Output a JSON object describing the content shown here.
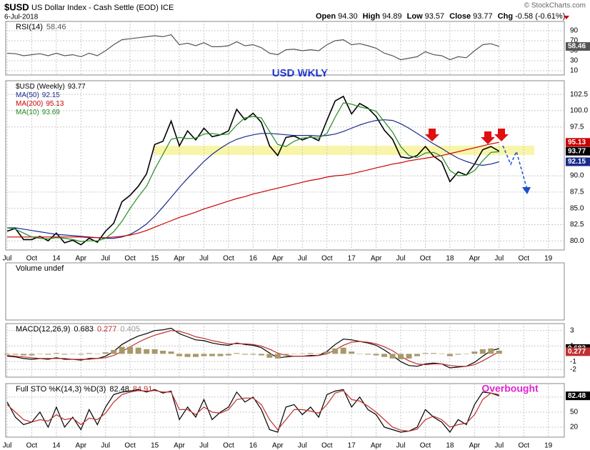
{
  "header": {
    "symbol": "$USD",
    "name": "US Dollar Index - Cash Settle (EOD) ICE",
    "date": "6-Jul-2018",
    "quote": [
      {
        "label": "Open",
        "value": "94.30"
      },
      {
        "label": "High",
        "value": "94.89"
      },
      {
        "label": "Low",
        "value": "93.57"
      },
      {
        "label": "Close",
        "value": "93.77"
      },
      {
        "label": "Chg",
        "value": "-0.58 (-0.61%)"
      }
    ],
    "credit": "© StockCharts.com",
    "volume_panel": "Volume undef"
  },
  "chart_data": [
    {
      "type": "line",
      "annotation": "USD WKLY",
      "categories": [
        "Jul",
        null,
        null,
        "Oct",
        null,
        null,
        "14",
        null,
        null,
        "Apr",
        null,
        null,
        "Jul",
        null,
        null,
        "Oct",
        null,
        null,
        "15",
        null,
        null,
        "Apr",
        null,
        null,
        "Jul",
        null,
        null,
        "Oct",
        null,
        null,
        "16",
        null,
        null,
        "Apr",
        null,
        null,
        "Jul",
        null,
        null,
        "Oct",
        null,
        null,
        "17",
        null,
        null,
        "Apr",
        null,
        null,
        "Jul",
        null,
        null,
        "Oct",
        null,
        null,
        "18",
        null,
        null,
        "Apr",
        null,
        null,
        "Jul",
        null,
        null,
        "Oct",
        null,
        null,
        "19"
      ],
      "ylim": [
        78.6,
        104.6
      ],
      "yticks": [
        {
          "value": 80,
          "label": "80.0"
        },
        82.5,
        {
          "value": 85,
          "label": "85.0"
        },
        87.5,
        {
          "value": 90,
          "label": "90.0"
        },
        97.5,
        {
          "value": 100,
          "label": "100.0"
        },
        102.5
      ],
      "series": [
        {
          "name": "$USD (Weekly)",
          "color": "#000000",
          "value_tag": true,
          "values": [
            81.5,
            81.9,
            80.2,
            80.2,
            80.7,
            80.0,
            81.2,
            79.7,
            80.1,
            79.4,
            80.4,
            79.8,
            81.5,
            82.7,
            86.0,
            87.0,
            88.4,
            90.3,
            94.8,
            95.3,
            98.4,
            94.6,
            96.9,
            95.5,
            97.3,
            96.0,
            96.3,
            96.9,
            100.2,
            98.6,
            99.6,
            98.2,
            94.6,
            93.1,
            95.9,
            96.1,
            95.5,
            96.0,
            95.4,
            98.5,
            101.5,
            102.2,
            99.5,
            101.1,
            100.4,
            99.1,
            97.0,
            95.6,
            92.9,
            92.7,
            93.1,
            94.5,
            93.0,
            92.1,
            89.1,
            90.6,
            90.1,
            91.8,
            94.0,
            94.5,
            93.77,
            null,
            null,
            null,
            null,
            null,
            null
          ]
        },
        {
          "name": "MA(50)",
          "color": "#1a2a8a",
          "value_tag": true,
          "values": [
            82.0,
            82.0,
            81.8,
            81.6,
            81.4,
            81.2,
            81.0,
            80.9,
            80.8,
            80.7,
            80.6,
            80.5,
            80.4,
            80.4,
            80.6,
            81.0,
            81.7,
            82.6,
            83.8,
            85.2,
            86.7,
            88.2,
            89.6,
            90.9,
            92.2,
            93.3,
            94.2,
            95.0,
            95.6,
            96.0,
            96.3,
            96.5,
            96.5,
            96.4,
            96.3,
            96.2,
            96.2,
            96.2,
            96.1,
            96.2,
            96.4,
            96.8,
            97.3,
            97.8,
            98.2,
            98.5,
            98.6,
            98.5,
            98.0,
            97.3,
            96.5,
            95.7,
            94.9,
            94.2,
            93.4,
            92.7,
            92.2,
            91.8,
            91.6,
            91.8,
            92.15,
            null,
            null,
            null,
            null,
            null,
            null
          ]
        },
        {
          "name": "MA(200)",
          "color": "#cc0000",
          "value_tag": true,
          "values": [
            80.6,
            80.6,
            80.6,
            80.6,
            80.6,
            80.6,
            80.6,
            80.6,
            80.6,
            80.6,
            80.5,
            80.5,
            80.5,
            80.6,
            80.7,
            80.9,
            81.2,
            81.6,
            82.1,
            82.6,
            83.1,
            83.6,
            84.0,
            84.4,
            84.9,
            85.3,
            85.7,
            86.1,
            86.5,
            86.8,
            87.2,
            87.5,
            87.8,
            88.1,
            88.4,
            88.7,
            89.0,
            89.3,
            89.5,
            89.8,
            90.0,
            90.1,
            90.3,
            90.6,
            90.9,
            91.2,
            91.5,
            91.8,
            92.0,
            92.3,
            92.5,
            92.7,
            92.9,
            93.1,
            93.4,
            93.7,
            94.0,
            94.3,
            94.6,
            94.9,
            95.13,
            null,
            null,
            null,
            null,
            null,
            null
          ]
        },
        {
          "name": "MA(10)",
          "color": "#228b22",
          "values": [
            82.0,
            81.8,
            81.2,
            80.6,
            80.4,
            80.3,
            80.5,
            80.4,
            80.2,
            79.9,
            80.0,
            80.0,
            80.4,
            81.4,
            83.0,
            85.0,
            86.8,
            88.4,
            91.0,
            93.3,
            95.6,
            95.9,
            95.7,
            95.8,
            96.4,
            96.5,
            96.3,
            96.4,
            97.8,
            98.9,
            99.1,
            98.9,
            96.8,
            94.8,
            94.5,
            95.3,
            95.8,
            95.9,
            95.8,
            96.5,
            99.0,
            101.2,
            101.0,
            100.6,
            100.3,
            99.9,
            98.3,
            96.7,
            94.5,
            93.1,
            92.8,
            93.5,
            93.6,
            93.0,
            90.8,
            90.0,
            90.1,
            90.8,
            92.3,
            93.6,
            93.69,
            null,
            null,
            null,
            null,
            null,
            null
          ]
        }
      ]
    },
    {
      "type": "line",
      "title": "RSI(14)",
      "ylim": [
        1.4,
        108.6
      ],
      "yticks": [
        90,
        70,
        50,
        30,
        10
      ],
      "series": [
        {
          "color": "#555555",
          "value_tag": true,
          "values": [
            45,
            44,
            40,
            42,
            44,
            40,
            45,
            40,
            42,
            38,
            45,
            40,
            50,
            62,
            72,
            74,
            76,
            78,
            80,
            78,
            82,
            62,
            65,
            60,
            66,
            58,
            58,
            60,
            68,
            60,
            62,
            56,
            45,
            42,
            52,
            53,
            50,
            52,
            50,
            62,
            70,
            72,
            62,
            64,
            60,
            55,
            45,
            40,
            32,
            35,
            38,
            48,
            42,
            40,
            32,
            38,
            36,
            50,
            62,
            64,
            58.46,
            null,
            null,
            null,
            null,
            null,
            null
          ]
        }
      ]
    },
    {
      "type": "line",
      "title": "MACD(12,26,9)",
      "ylim": [
        -3,
        3.9
      ],
      "yticks": [
        3,
        1,
        -1,
        -2
      ],
      "series": [
        {
          "color": "#000000",
          "value_tag": true,
          "values": [
            -0.3,
            -0.4,
            -0.6,
            -0.7,
            -0.6,
            -0.7,
            -0.5,
            -0.7,
            -0.7,
            -0.8,
            -0.6,
            -0.6,
            -0.3,
            0.3,
            1.2,
            1.8,
            2.3,
            2.6,
            3.0,
            3.1,
            3.3,
            2.6,
            2.2,
            1.8,
            1.7,
            1.4,
            1.2,
            1.1,
            1.4,
            1.2,
            1.1,
            0.8,
            0.1,
            -0.5,
            -0.4,
            -0.3,
            -0.3,
            -0.2,
            -0.2,
            0.3,
            1.2,
            1.9,
            1.8,
            1.6,
            1.4,
            1.1,
            0.5,
            -0.2,
            -1.0,
            -1.5,
            -1.6,
            -1.3,
            -1.2,
            -1.3,
            -1.8,
            -1.7,
            -1.6,
            -1.1,
            -0.3,
            0.4,
            0.683,
            null,
            null,
            null,
            null,
            null,
            null
          ]
        },
        {
          "color": "#c03030",
          "value_tag": true,
          "values": [
            -0.2,
            -0.3,
            -0.4,
            -0.5,
            -0.6,
            -0.6,
            -0.6,
            -0.6,
            -0.7,
            -0.7,
            -0.7,
            -0.6,
            -0.5,
            -0.2,
            0.3,
            0.9,
            1.5,
            2.0,
            2.4,
            2.7,
            3.0,
            2.9,
            2.6,
            2.2,
            2.0,
            1.7,
            1.5,
            1.3,
            1.3,
            1.3,
            1.2,
            1.0,
            0.6,
            0.1,
            -0.2,
            -0.3,
            -0.3,
            -0.3,
            -0.2,
            0.0,
            0.5,
            1.1,
            1.5,
            1.6,
            1.5,
            1.3,
            0.9,
            0.4,
            -0.3,
            -0.9,
            -1.3,
            -1.4,
            -1.3,
            -1.3,
            -1.5,
            -1.6,
            -1.6,
            -1.4,
            -0.9,
            -0.3,
            0.277,
            null,
            null,
            null,
            null,
            null,
            null
          ]
        },
        {
          "type": "bar",
          "color": "#a8996a",
          "values": [
            -0.1,
            -0.1,
            -0.2,
            -0.2,
            0.0,
            -0.1,
            0.1,
            -0.1,
            0.0,
            -0.1,
            0.1,
            0.0,
            0.2,
            0.5,
            0.9,
            0.9,
            0.8,
            0.6,
            0.6,
            0.4,
            0.3,
            -0.3,
            -0.4,
            -0.4,
            -0.3,
            -0.3,
            -0.3,
            -0.2,
            0.1,
            -0.1,
            -0.1,
            -0.2,
            -0.5,
            -0.6,
            -0.2,
            0.0,
            0.0,
            0.1,
            0.0,
            0.3,
            0.7,
            0.8,
            0.3,
            0.0,
            -0.1,
            -0.2,
            -0.4,
            -0.6,
            -0.7,
            -0.6,
            -0.3,
            0.1,
            0.1,
            0.0,
            -0.3,
            -0.1,
            0.0,
            0.3,
            0.6,
            0.7,
            0.405,
            null,
            null,
            null,
            null,
            null,
            null
          ]
        }
      ]
    },
    {
      "type": "line",
      "title": "Full STO %K(14,3) %D(3)",
      "annotation": "Overbought",
      "ylim": [
        0,
        107
      ],
      "yticks": [
        80,
        50,
        20
      ],
      "series": [
        {
          "color": "#000000",
          "value_tag": true,
          "values": [
            70,
            40,
            25,
            30,
            50,
            20,
            60,
            20,
            40,
            15,
            55,
            25,
            60,
            85,
            90,
            92,
            95,
            90,
            95,
            88,
            92,
            35,
            60,
            40,
            75,
            35,
            50,
            60,
            90,
            70,
            80,
            55,
            15,
            10,
            60,
            65,
            45,
            60,
            40,
            85,
            92,
            95,
            60,
            80,
            55,
            45,
            20,
            15,
            10,
            12,
            20,
            55,
            40,
            30,
            10,
            35,
            25,
            65,
            90,
            88,
            82.48,
            null,
            null,
            null,
            null,
            null,
            null
          ]
        },
        {
          "color": "#c03030",
          "values": [
            65,
            50,
            35,
            30,
            35,
            32,
            45,
            35,
            38,
            25,
            38,
            35,
            48,
            70,
            85,
            90,
            93,
            92,
            93,
            90,
            90,
            55,
            55,
            45,
            60,
            50,
            48,
            55,
            75,
            78,
            78,
            65,
            35,
            15,
            35,
            55,
            55,
            52,
            48,
            65,
            88,
            93,
            75,
            72,
            62,
            50,
            35,
            20,
            14,
            12,
            16,
            35,
            42,
            35,
            20,
            25,
            28,
            45,
            75,
            88,
            84.91,
            null,
            null,
            null,
            null,
            null,
            null
          ]
        }
      ]
    }
  ]
}
